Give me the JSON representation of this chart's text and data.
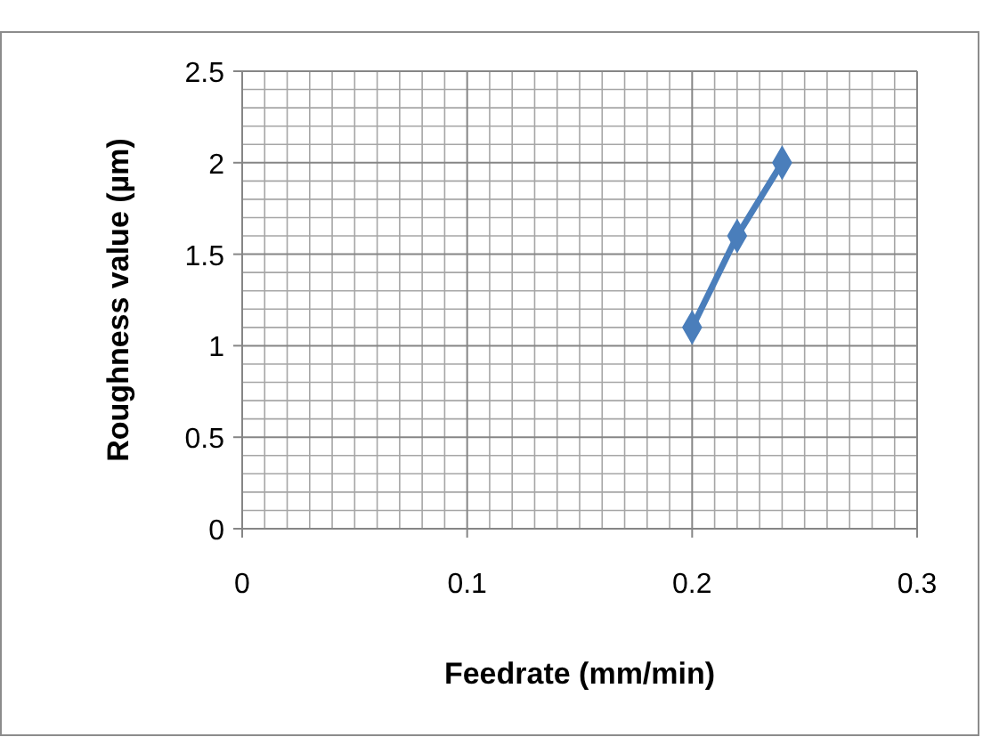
{
  "chart_data": {
    "type": "line",
    "xlabel": "Feedrate (mm/min)",
    "ylabel": "Roughness value (µm)",
    "x": [
      0.2,
      0.22,
      0.24
    ],
    "series": [
      {
        "color": "#4a7ebb",
        "values": [
          1.1,
          1.6,
          2.0
        ]
      }
    ],
    "xlim": [
      0,
      0.3
    ],
    "xticks": [
      0,
      0.1,
      0.2,
      0.3
    ],
    "ylim": [
      0,
      2.5
    ],
    "yticks": [
      0,
      0.5,
      1,
      1.5,
      2,
      2.5
    ],
    "grid": true,
    "marker": "diamond",
    "line_style": "solid"
  }
}
